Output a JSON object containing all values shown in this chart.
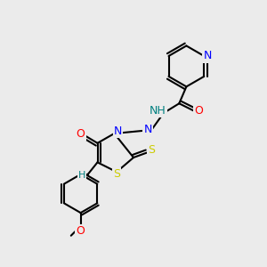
{
  "background_color": "#ebebeb",
  "bond_color": "#000000",
  "atom_colors": {
    "N": "#0000ff",
    "O": "#ff0000",
    "S": "#cccc00",
    "S_dark": "#999900",
    "H_label": "#008080",
    "C": "#000000"
  },
  "font_size_atom": 9,
  "font_size_H": 8,
  "line_width": 1.5
}
